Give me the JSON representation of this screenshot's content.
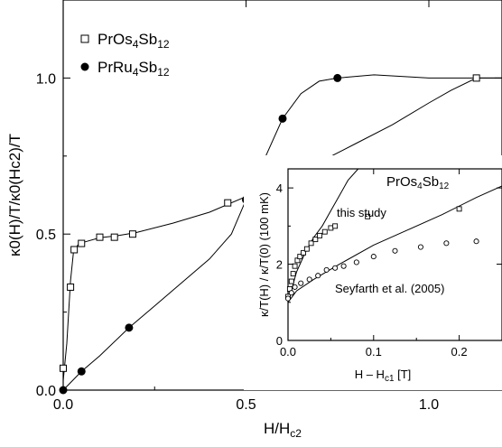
{
  "chart_data": [
    {
      "type": "line",
      "xlabel": "H/H",
      "xlabel_sub": "c2",
      "ylabel": "κ0(H)/T/κ0(Hc2)/T",
      "xlim": [
        0,
        1.2
      ],
      "ylim": [
        0,
        1.25
      ],
      "x_ticks": [
        "0.0",
        "0.5",
        "1.0"
      ],
      "y_ticks": [
        "0.0",
        "0.5",
        "1.0"
      ],
      "grid": false,
      "legend_placement": "top-left",
      "series": [
        {
          "name": "PrOs4Sb12",
          "name_parts": [
            "PrOs",
            "4",
            "Sb",
            "12"
          ],
          "marker": "open-square",
          "points": [
            [
              0.0,
              0.07
            ],
            [
              0.02,
              0.33
            ],
            [
              0.03,
              0.45
            ],
            [
              0.05,
              0.47
            ],
            [
              0.1,
              0.49
            ],
            [
              0.14,
              0.49
            ],
            [
              0.19,
              0.5
            ],
            [
              0.45,
              0.6
            ],
            [
              1.13,
              1.0
            ]
          ],
          "curve": [
            [
              0.0,
              0.03
            ],
            [
              0.01,
              0.15
            ],
            [
              0.02,
              0.35
            ],
            [
              0.028,
              0.44
            ],
            [
              0.04,
              0.465
            ],
            [
              0.06,
              0.475
            ],
            [
              0.1,
              0.488
            ],
            [
              0.15,
              0.495
            ],
            [
              0.2,
              0.505
            ],
            [
              0.3,
              0.535
            ],
            [
              0.4,
              0.57
            ],
            [
              0.5,
              0.62
            ],
            [
              0.6,
              0.67
            ],
            [
              0.7,
              0.73
            ],
            [
              0.8,
              0.79
            ],
            [
              0.9,
              0.85
            ],
            [
              1.0,
              0.92
            ],
            [
              1.06,
              0.96
            ],
            [
              1.13,
              1.0
            ],
            [
              1.2,
              1.0
            ]
          ]
        },
        {
          "name": "PrRu4Sb12",
          "name_parts": [
            "PrRu",
            "4",
            "Sb",
            "12"
          ],
          "marker": "filled-circle",
          "points": [
            [
              0.0,
              0.0
            ],
            [
              0.05,
              0.06
            ],
            [
              0.18,
              0.2
            ],
            [
              0.5,
              0.61
            ],
            [
              0.6,
              0.87
            ],
            [
              0.75,
              1.0
            ]
          ],
          "curve": [
            [
              0.0,
              0.0
            ],
            [
              0.05,
              0.06
            ],
            [
              0.1,
              0.11
            ],
            [
              0.18,
              0.2
            ],
            [
              0.25,
              0.27
            ],
            [
              0.32,
              0.34
            ],
            [
              0.4,
              0.42
            ],
            [
              0.46,
              0.5
            ],
            [
              0.5,
              0.61
            ],
            [
              0.55,
              0.74
            ],
            [
              0.6,
              0.87
            ],
            [
              0.65,
              0.95
            ],
            [
              0.7,
              0.99
            ],
            [
              0.75,
              1.0
            ],
            [
              0.85,
              1.01
            ],
            [
              1.0,
              1.0
            ],
            [
              1.2,
              1.0
            ]
          ]
        }
      ]
    },
    {
      "type": "scatter",
      "title": "PrOs4Sb12",
      "title_parts": [
        "PrOs",
        "4",
        "Sb",
        "12"
      ],
      "xlabel": "H – H",
      "xlabel_sub": "c1",
      "xlabel_unit": " [T]",
      "ylabel": "κ/T(H) / κ/T(0) (100 mK)",
      "xlim": [
        0,
        0.25
      ],
      "ylim": [
        0,
        4.5
      ],
      "x_ticks": [
        "0.0",
        "0.1",
        "0.2"
      ],
      "y_ticks": [
        "0",
        "2",
        "4"
      ],
      "annotations": [
        "this study",
        "Seyfarth et al. (2005)"
      ],
      "series": [
        {
          "name": "this study",
          "marker": "open-square",
          "points": [
            [
              0.0,
              1.15
            ],
            [
              0.002,
              1.35
            ],
            [
              0.004,
              1.55
            ],
            [
              0.006,
              1.75
            ],
            [
              0.008,
              1.95
            ],
            [
              0.011,
              2.1
            ],
            [
              0.014,
              2.2
            ],
            [
              0.018,
              2.3
            ],
            [
              0.022,
              2.4
            ],
            [
              0.027,
              2.55
            ],
            [
              0.032,
              2.65
            ],
            [
              0.037,
              2.75
            ],
            [
              0.043,
              2.85
            ],
            [
              0.05,
              2.95
            ],
            [
              0.055,
              3.0
            ],
            [
              0.093,
              3.25
            ],
            [
              0.2,
              3.45
            ]
          ],
          "curve": [
            [
              0.0,
              1.0
            ],
            [
              0.01,
              1.8
            ],
            [
              0.02,
              2.3
            ],
            [
              0.03,
              2.7
            ],
            [
              0.04,
              3.0
            ],
            [
              0.05,
              3.4
            ],
            [
              0.06,
              3.8
            ],
            [
              0.07,
              4.2
            ],
            [
              0.082,
              4.6
            ]
          ]
        },
        {
          "name": "Seyfarth et al. (2005)",
          "marker": "open-circle",
          "points": [
            [
              0.0,
              1.1
            ],
            [
              0.004,
              1.25
            ],
            [
              0.008,
              1.4
            ],
            [
              0.015,
              1.5
            ],
            [
              0.025,
              1.6
            ],
            [
              0.035,
              1.7
            ],
            [
              0.045,
              1.85
            ],
            [
              0.055,
              1.9
            ],
            [
              0.065,
              1.95
            ],
            [
              0.08,
              2.05
            ],
            [
              0.1,
              2.2
            ],
            [
              0.125,
              2.35
            ],
            [
              0.155,
              2.45
            ],
            [
              0.185,
              2.55
            ],
            [
              0.22,
              2.6
            ]
          ],
          "curve": [
            [
              0.0,
              1.0
            ],
            [
              0.01,
              1.3
            ],
            [
              0.03,
              1.6
            ],
            [
              0.06,
              2.0
            ],
            [
              0.1,
              2.5
            ],
            [
              0.14,
              2.9
            ],
            [
              0.18,
              3.3
            ],
            [
              0.22,
              3.75
            ],
            [
              0.25,
              4.05
            ]
          ]
        }
      ]
    }
  ]
}
